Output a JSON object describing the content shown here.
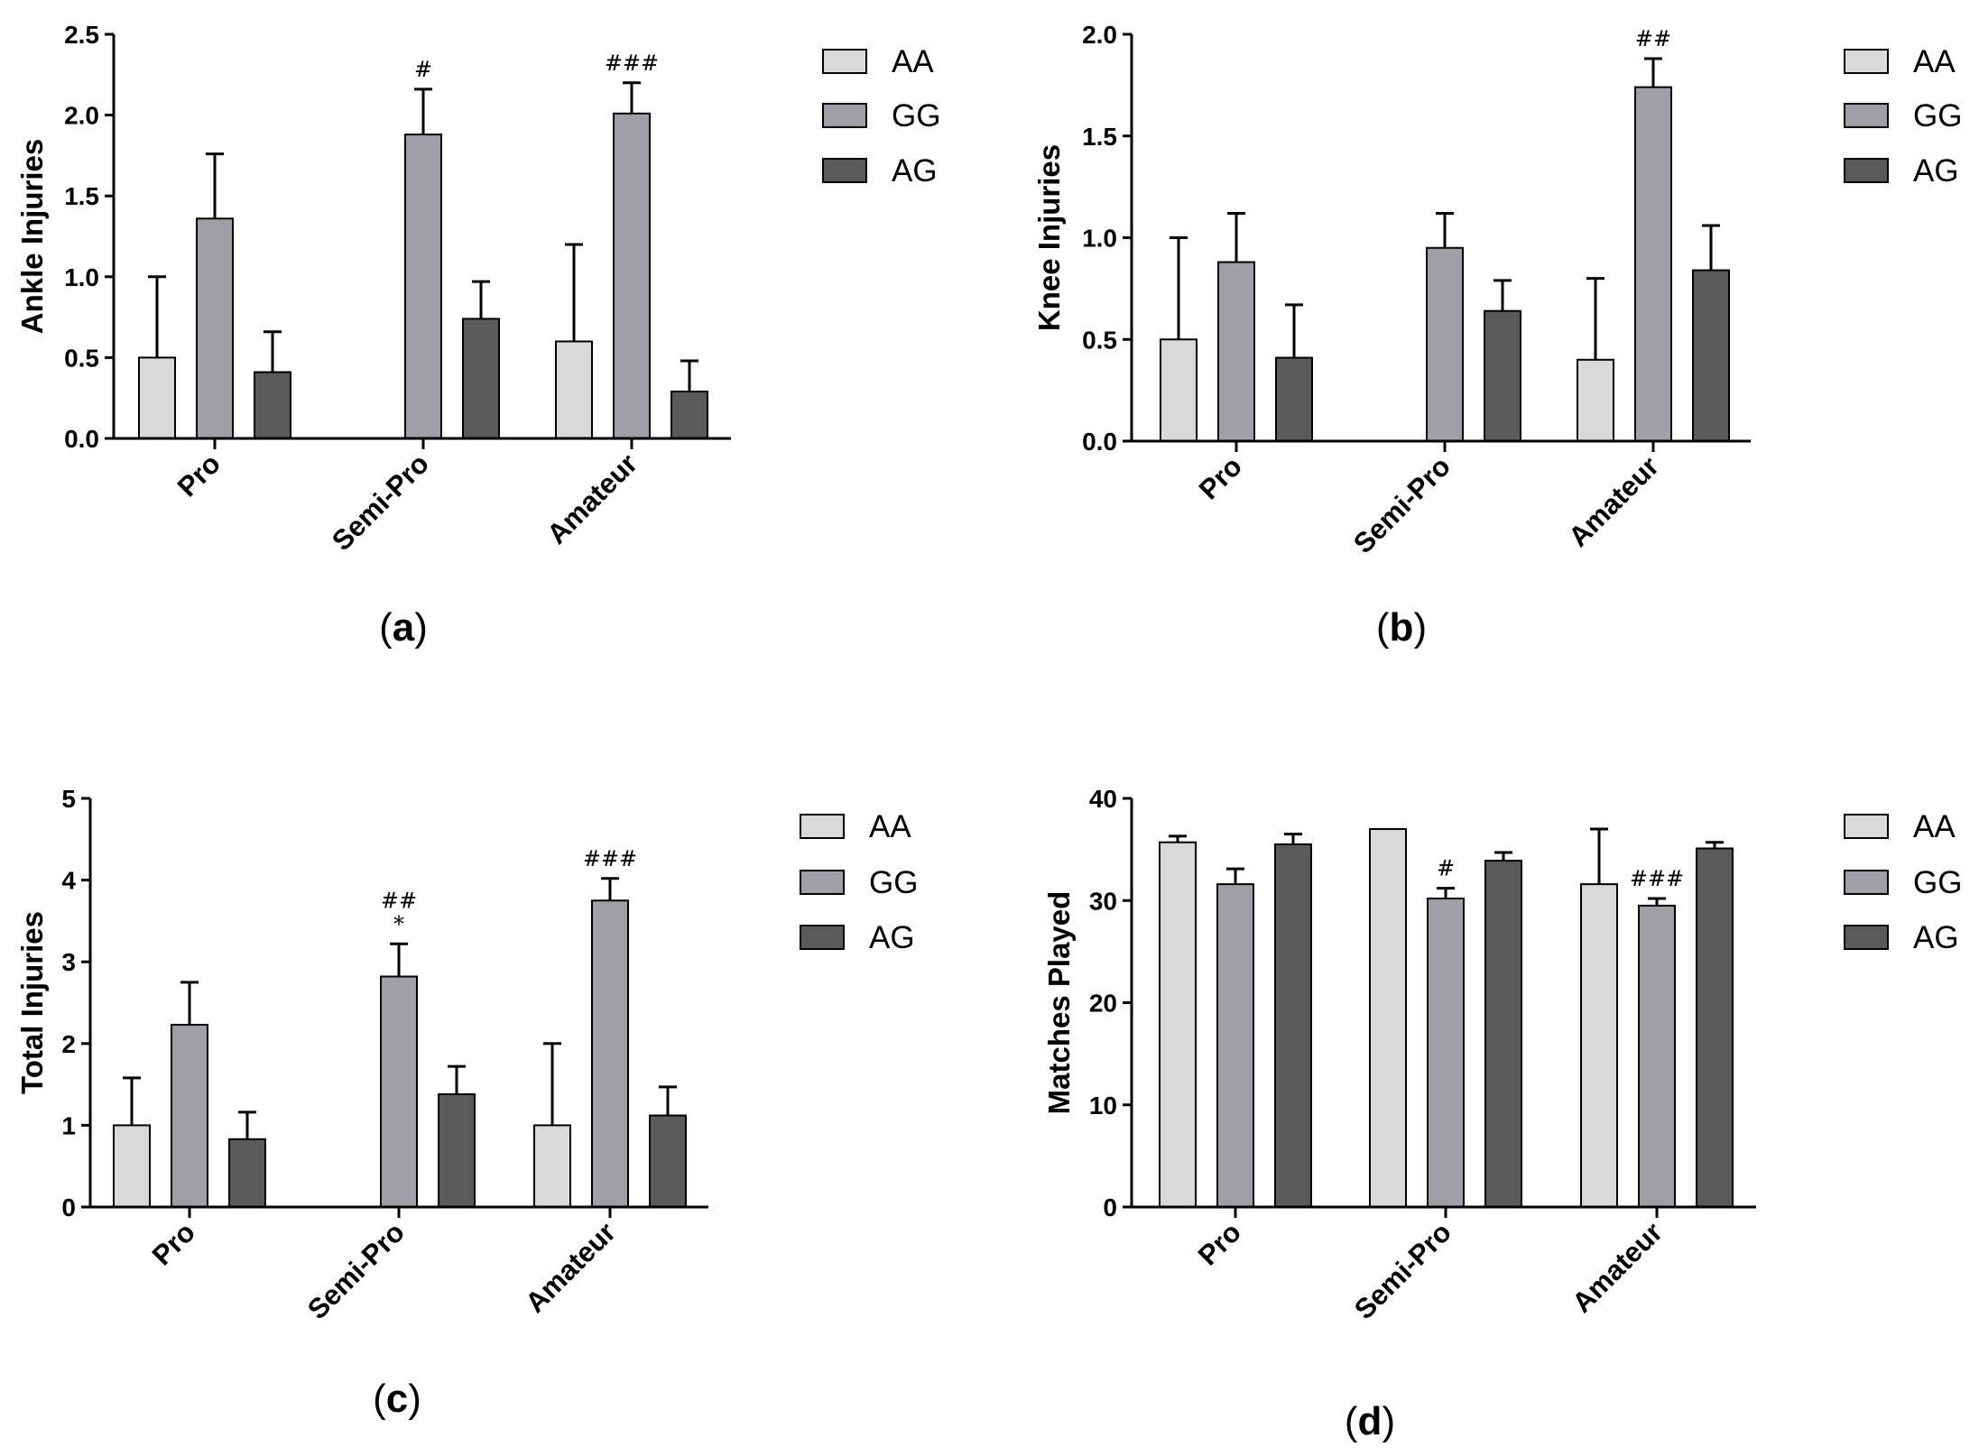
{
  "colors": {
    "AA": "#d9d9d9",
    "GG": "#a09fa7",
    "AG": "#5a5a5a",
    "axis": "#000000"
  },
  "chart_data": [
    {
      "id": "a",
      "type": "bar",
      "panel_label": "a",
      "ylabel": "Ankle Injuries",
      "categories": [
        "Pro",
        "Semi-Pro",
        "Amateur"
      ],
      "ylim": [
        0,
        2.5
      ],
      "yticks": [
        "0.0",
        "0.5",
        "1.0",
        "1.5",
        "2.0",
        "2.5"
      ],
      "series": [
        {
          "name": "AA",
          "values": [
            0.5,
            null,
            0.6
          ],
          "errors": [
            0.5,
            null,
            0.6
          ]
        },
        {
          "name": "GG",
          "values": [
            1.36,
            1.88,
            2.01
          ],
          "errors": [
            0.4,
            0.28,
            0.19
          ]
        },
        {
          "name": "AG",
          "values": [
            0.41,
            0.74,
            0.29
          ],
          "errors": [
            0.25,
            0.23,
            0.19
          ]
        }
      ],
      "annotations": [
        {
          "category": "Semi-Pro",
          "series": "GG",
          "lines": [
            "#"
          ]
        },
        {
          "category": "Amateur",
          "series": "GG",
          "lines": [
            "###"
          ]
        }
      ]
    },
    {
      "id": "b",
      "type": "bar",
      "panel_label": "b",
      "ylabel": "Knee Injuries",
      "categories": [
        "Pro",
        "Semi-Pro",
        "Amateur"
      ],
      "ylim": [
        0,
        2.0
      ],
      "yticks": [
        "0.0",
        "0.5",
        "1.0",
        "1.5",
        "2.0"
      ],
      "series": [
        {
          "name": "AA",
          "values": [
            0.5,
            null,
            0.4
          ],
          "errors": [
            0.5,
            null,
            0.4
          ]
        },
        {
          "name": "GG",
          "values": [
            0.88,
            0.95,
            1.74
          ],
          "errors": [
            0.24,
            0.17,
            0.14
          ]
        },
        {
          "name": "AG",
          "values": [
            0.41,
            0.64,
            0.84
          ],
          "errors": [
            0.26,
            0.15,
            0.22
          ]
        }
      ],
      "annotations": [
        {
          "category": "Amateur",
          "series": "GG",
          "lines": [
            "##"
          ]
        }
      ]
    },
    {
      "id": "c",
      "type": "bar",
      "panel_label": "c",
      "ylabel": "Total Injuries",
      "categories": [
        "Pro",
        "Semi-Pro",
        "Amateur"
      ],
      "ylim": [
        0,
        5
      ],
      "yticks": [
        "0",
        "1",
        "2",
        "3",
        "4",
        "5"
      ],
      "series": [
        {
          "name": "AA",
          "values": [
            1.0,
            null,
            1.0
          ],
          "errors": [
            0.58,
            null,
            1.0
          ]
        },
        {
          "name": "GG",
          "values": [
            2.23,
            2.82,
            3.75
          ],
          "errors": [
            0.52,
            0.4,
            0.27
          ]
        },
        {
          "name": "AG",
          "values": [
            0.83,
            1.38,
            1.12
          ],
          "errors": [
            0.33,
            0.34,
            0.35
          ]
        }
      ],
      "annotations": [
        {
          "category": "Semi-Pro",
          "series": "GG",
          "lines": [
            "##",
            "*"
          ]
        },
        {
          "category": "Amateur",
          "series": "GG",
          "lines": [
            "###"
          ]
        }
      ]
    },
    {
      "id": "d",
      "type": "bar",
      "panel_label": "d",
      "ylabel": "Matches Played",
      "categories": [
        "Pro",
        "Semi-Pro",
        "Amateur"
      ],
      "ylim": [
        0,
        40
      ],
      "yticks": [
        "0",
        "10",
        "20",
        "30",
        "40"
      ],
      "series": [
        {
          "name": "AA",
          "values": [
            35.7,
            37.0,
            31.6
          ],
          "errors": [
            0.6,
            0,
            5.4
          ]
        },
        {
          "name": "GG",
          "values": [
            31.6,
            30.2,
            29.5
          ],
          "errors": [
            1.5,
            1.0,
            0.7
          ]
        },
        {
          "name": "AG",
          "values": [
            35.5,
            33.9,
            35.1
          ],
          "errors": [
            1.0,
            0.8,
            0.6
          ]
        }
      ],
      "annotations": [
        {
          "category": "Semi-Pro",
          "series": "GG",
          "lines": [
            "#"
          ]
        },
        {
          "category": "Amateur",
          "series": "GG",
          "lines": [
            "###"
          ]
        }
      ]
    }
  ]
}
